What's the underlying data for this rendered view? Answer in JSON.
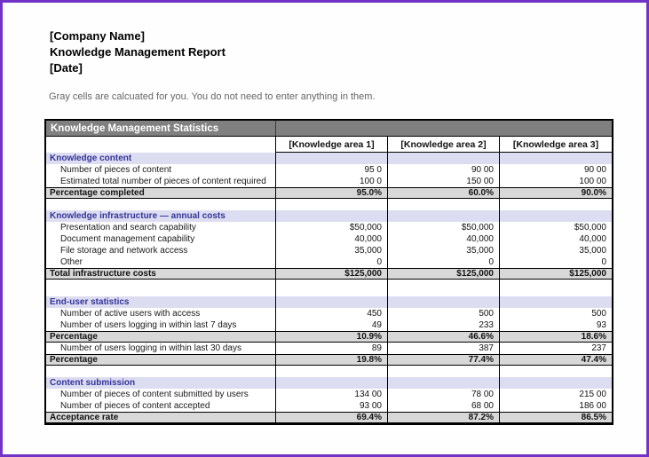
{
  "header": {
    "company_name": "[Company Name]",
    "report_title": "Knowledge Management Report",
    "date": "[Date]",
    "note": "Gray cells are calcuated for you. You do not need to enter anything in them."
  },
  "table": {
    "title": "Knowledge Management Statistics",
    "column_headers": [
      "[Knowledge area 1]",
      "[Knowledge area 2]",
      "[Knowledge area 3]"
    ],
    "rows": [
      {
        "type": "section",
        "label": "Knowledge content",
        "values": [
          "",
          "",
          ""
        ]
      },
      {
        "type": "item",
        "label": "Number of pieces of content",
        "values": [
          "95 0",
          "90 00",
          "90 00"
        ]
      },
      {
        "type": "item",
        "label": "Estimated total number of pieces of content required",
        "values": [
          "100 0",
          "150 00",
          "100 00"
        ]
      },
      {
        "type": "calc",
        "label": "Percentage completed",
        "values": [
          "95.0%",
          "60.0%",
          "90.0%"
        ]
      },
      {
        "type": "blank",
        "label": "",
        "values": [
          "",
          "",
          ""
        ]
      },
      {
        "type": "section",
        "label": "Knowledge infrastructure — annual costs",
        "values": [
          "",
          "",
          ""
        ]
      },
      {
        "type": "item",
        "label": "Presentation and search capability",
        "values": [
          "$50,000",
          "$50,000",
          "$50,000"
        ]
      },
      {
        "type": "item",
        "label": "Document management capability",
        "values": [
          "40,000",
          "40,000",
          "40,000"
        ]
      },
      {
        "type": "item",
        "label": "File storage and network access",
        "values": [
          "35,000",
          "35,000",
          "35,000"
        ]
      },
      {
        "type": "item",
        "label": "Other",
        "values": [
          "0",
          "0",
          "0"
        ]
      },
      {
        "type": "calc",
        "label": "Total infrastructure costs",
        "values": [
          "$125,000",
          "$125,000",
          "$125,000"
        ]
      },
      {
        "type": "blank",
        "tall": true,
        "label": "",
        "values": [
          "",
          "",
          ""
        ]
      },
      {
        "type": "section",
        "label": "End-user statistics",
        "values": [
          "",
          "",
          ""
        ]
      },
      {
        "type": "item",
        "label": "Number of active users with access",
        "values": [
          "450",
          "500",
          "500"
        ]
      },
      {
        "type": "item",
        "label": "Number of users logging in within last 7 days",
        "values": [
          "49",
          "233",
          "93"
        ]
      },
      {
        "type": "calc",
        "label": "Percentage",
        "values": [
          "10.9%",
          "46.6%",
          "18.6%"
        ]
      },
      {
        "type": "item",
        "label": "Number of users logging in within last 30 days",
        "values": [
          "89",
          "387",
          "237"
        ]
      },
      {
        "type": "calc",
        "label": "Percentage",
        "values": [
          "19.8%",
          "77.4%",
          "47.4%"
        ]
      },
      {
        "type": "blank",
        "label": "",
        "values": [
          "",
          "",
          ""
        ]
      },
      {
        "type": "section",
        "label": "Content submission",
        "values": [
          "",
          "",
          ""
        ]
      },
      {
        "type": "item",
        "label": "Number of pieces of content submitted by users",
        "values": [
          "134 00",
          "78 00",
          "215 00"
        ]
      },
      {
        "type": "item",
        "label": "Number of pieces of content accepted",
        "values": [
          "93 00",
          "68 00",
          "186 00"
        ]
      },
      {
        "type": "calc",
        "label": "Acceptance rate",
        "values": [
          "69.4%",
          "87.2%",
          "86.5%"
        ]
      }
    ]
  },
  "colors": {
    "frame_purple": "#7232C8",
    "title_bar_gray": "#808080",
    "section_lavender": "#DDDDF2",
    "calculated_gray": "#D8D8D8",
    "section_text_blue": "#333399",
    "note_gray": "#666666"
  }
}
